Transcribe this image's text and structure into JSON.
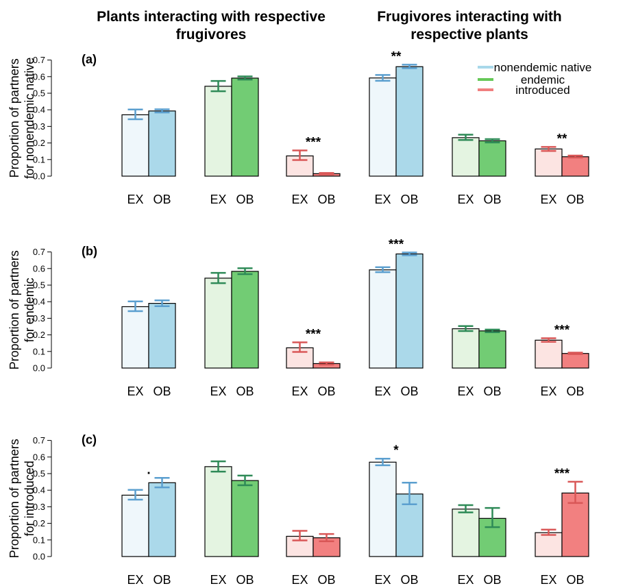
{
  "column_titles": {
    "left": "Plants interacting with respective frugivores",
    "right": "Frugivores interacting with respective plants"
  },
  "legend": [
    {
      "label": "nonendemic native",
      "color": "#a8d8ea"
    },
    {
      "label": "endemic",
      "color": "#66c858"
    },
    {
      "label": "introduced",
      "color": "#f07f7f"
    }
  ],
  "colors": {
    "nonendemic native": {
      "ex": "#eff7fb",
      "ob": "#abd9ea",
      "err": "#5b9fcf"
    },
    "endemic": {
      "ex": "#e4f4e1",
      "ob": "#72cc74",
      "err": "#2e8a57"
    },
    "introduced": {
      "ex": "#fce4e2",
      "ob": "#f28080",
      "err": "#d95757"
    }
  },
  "chart_data": [
    {
      "type": "bar",
      "panel_label": "(a)",
      "ylabel": "Proportion of partners for nonendemic native",
      "ylim": [
        0,
        0.7
      ],
      "yticks": [
        "0.0",
        "0.1",
        "0.2",
        "0.3",
        "0.4",
        "0.5",
        "0.6",
        "0.7"
      ],
      "groups": [
        {
          "category": "nonendemic native",
          "labels": [
            "EX",
            "OB"
          ],
          "values": [
            0.37,
            0.393
          ],
          "err_low": [
            0.343,
            0.384
          ],
          "err_high": [
            0.402,
            0.403
          ],
          "sig": ""
        },
        {
          "category": "endemic",
          "labels": [
            "EX",
            "OB"
          ],
          "values": [
            0.542,
            0.591
          ],
          "err_low": [
            0.512,
            0.582
          ],
          "err_high": [
            0.574,
            0.601
          ],
          "sig": ""
        },
        {
          "category": "introduced",
          "labels": [
            "EX",
            "OB"
          ],
          "values": [
            0.122,
            0.015
          ],
          "err_low": [
            0.097,
            0.011
          ],
          "err_high": [
            0.155,
            0.019
          ],
          "sig": "***"
        },
        {
          "category": "nonendemic native",
          "labels": [
            "EX",
            "OB"
          ],
          "values": [
            0.592,
            0.66
          ],
          "err_low": [
            0.575,
            0.651
          ],
          "err_high": [
            0.61,
            0.672
          ],
          "sig": "**"
        },
        {
          "category": "endemic",
          "labels": [
            "EX",
            "OB"
          ],
          "values": [
            0.232,
            0.213
          ],
          "err_low": [
            0.218,
            0.203
          ],
          "err_high": [
            0.25,
            0.223
          ],
          "sig": ""
        },
        {
          "category": "introduced",
          "labels": [
            "EX",
            "OB"
          ],
          "values": [
            0.164,
            0.117
          ],
          "err_low": [
            0.152,
            0.112
          ],
          "err_high": [
            0.176,
            0.124
          ],
          "sig": "**"
        }
      ]
    },
    {
      "type": "bar",
      "panel_label": "(b)",
      "ylabel": "Proportion of partners for endemic",
      "ylim": [
        0,
        0.7
      ],
      "yticks": [
        "0.0",
        "0.1",
        "0.2",
        "0.3",
        "0.4",
        "0.5",
        "0.6",
        "0.7"
      ],
      "groups": [
        {
          "category": "nonendemic native",
          "labels": [
            "EX",
            "OB"
          ],
          "values": [
            0.37,
            0.39
          ],
          "err_low": [
            0.343,
            0.373
          ],
          "err_high": [
            0.402,
            0.408
          ],
          "sig": ""
        },
        {
          "category": "endemic",
          "labels": [
            "EX",
            "OB"
          ],
          "values": [
            0.542,
            0.583
          ],
          "err_low": [
            0.512,
            0.566
          ],
          "err_high": [
            0.574,
            0.602
          ],
          "sig": ""
        },
        {
          "category": "introduced",
          "labels": [
            "EX",
            "OB"
          ],
          "values": [
            0.122,
            0.027
          ],
          "err_low": [
            0.097,
            0.021
          ],
          "err_high": [
            0.155,
            0.034
          ],
          "sig": "***"
        },
        {
          "category": "nonendemic native",
          "labels": [
            "EX",
            "OB"
          ],
          "values": [
            0.592,
            0.688
          ],
          "err_low": [
            0.578,
            0.68
          ],
          "err_high": [
            0.608,
            0.697
          ],
          "sig": "***"
        },
        {
          "category": "endemic",
          "labels": [
            "EX",
            "OB"
          ],
          "values": [
            0.237,
            0.224
          ],
          "err_low": [
            0.223,
            0.216
          ],
          "err_high": [
            0.253,
            0.232
          ],
          "sig": ""
        },
        {
          "category": "introduced",
          "labels": [
            "EX",
            "OB"
          ],
          "values": [
            0.168,
            0.088
          ],
          "err_low": [
            0.158,
            0.084
          ],
          "err_high": [
            0.18,
            0.093
          ],
          "sig": "***"
        }
      ]
    },
    {
      "type": "bar",
      "panel_label": "(c)",
      "ylabel": "Proportion of partners for introduced",
      "ylim": [
        0,
        0.7
      ],
      "yticks": [
        "0.0",
        "0.1",
        "0.2",
        "0.3",
        "0.4",
        "0.5",
        "0.6",
        "0.7"
      ],
      "groups": [
        {
          "category": "nonendemic native",
          "labels": [
            "EX",
            "OB"
          ],
          "values": [
            0.37,
            0.445
          ],
          "err_low": [
            0.343,
            0.417
          ],
          "err_high": [
            0.402,
            0.474
          ],
          "sig": "."
        },
        {
          "category": "endemic",
          "labels": [
            "EX",
            "OB"
          ],
          "values": [
            0.542,
            0.458
          ],
          "err_low": [
            0.512,
            0.43
          ],
          "err_high": [
            0.574,
            0.488
          ],
          "sig": ""
        },
        {
          "category": "introduced",
          "labels": [
            "EX",
            "OB"
          ],
          "values": [
            0.122,
            0.113
          ],
          "err_low": [
            0.097,
            0.092
          ],
          "err_high": [
            0.155,
            0.136
          ],
          "sig": ""
        },
        {
          "category": "nonendemic native",
          "labels": [
            "EX",
            "OB"
          ],
          "values": [
            0.569,
            0.377
          ],
          "err_low": [
            0.55,
            0.315
          ],
          "err_high": [
            0.59,
            0.445
          ],
          "sig": "*"
        },
        {
          "category": "endemic",
          "labels": [
            "EX",
            "OB"
          ],
          "values": [
            0.286,
            0.23
          ],
          "err_low": [
            0.266,
            0.177
          ],
          "err_high": [
            0.31,
            0.293
          ],
          "sig": ""
        },
        {
          "category": "introduced",
          "labels": [
            "EX",
            "OB"
          ],
          "values": [
            0.144,
            0.383
          ],
          "err_low": [
            0.13,
            0.323
          ],
          "err_high": [
            0.162,
            0.451
          ],
          "sig": "***"
        }
      ]
    }
  ]
}
